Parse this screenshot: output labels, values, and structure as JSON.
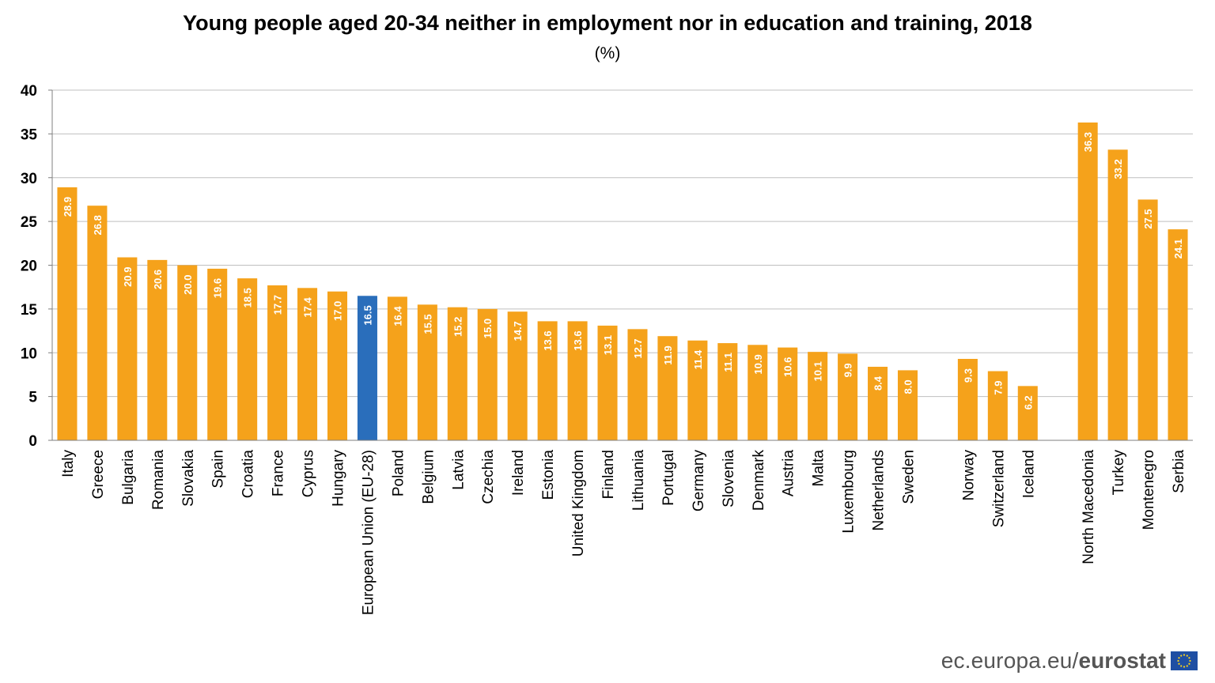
{
  "chart_data": {
    "type": "bar",
    "title": "Young people aged 20-34 neither in employment nor in education and training, 2018",
    "subtitle": "(%)",
    "ylim": [
      0,
      40
    ],
    "yticks": [
      0,
      5,
      10,
      15,
      20,
      25,
      30,
      35,
      40
    ],
    "grid": true,
    "groups": [
      {
        "categories": [
          "Italy",
          "Greece",
          "Bulgaria",
          "Romania",
          "Slovakia",
          "Spain",
          "Croatia",
          "France",
          "Cyprus",
          "Hungary",
          "European Union (EU-28)",
          "Poland",
          "Belgium",
          "Latvia",
          "Czechia",
          "Ireland",
          "Estonia",
          "United Kingdom",
          "Finland",
          "Lithuania",
          "Portugal",
          "Germany",
          "Slovenia",
          "Denmark",
          "Austria",
          "Malta",
          "Luxembourg",
          "Netherlands",
          "Sweden"
        ],
        "values": [
          28.9,
          26.8,
          20.9,
          20.6,
          20.0,
          19.6,
          18.5,
          17.7,
          17.4,
          17.0,
          16.5,
          16.4,
          15.5,
          15.2,
          15.0,
          14.7,
          13.6,
          13.6,
          13.1,
          12.7,
          11.9,
          11.4,
          11.1,
          10.9,
          10.6,
          10.1,
          9.9,
          8.4,
          8.0
        ],
        "labels": [
          "28.9",
          "26.8",
          "20.9",
          "20.6",
          "20.0",
          "19.6",
          "18.5",
          "17.7",
          "17.4",
          "17.0",
          "16.5",
          "16.4",
          "15.5",
          "15.2",
          "15.0",
          "14.7",
          "13.6",
          "13.6",
          "13.1",
          "12.7",
          "11.9",
          "11.4",
          "11.1",
          "10.9",
          "10.6",
          "10.1",
          "9.9",
          "8.4",
          "8.0"
        ]
      },
      {
        "categories": [
          "Norway",
          "Switzerland",
          "Iceland"
        ],
        "values": [
          9.3,
          7.9,
          6.2
        ],
        "labels": [
          "9.3",
          "7.9",
          "6.2"
        ]
      },
      {
        "categories": [
          "North Macedonia",
          "Turkey",
          "Montenegro",
          "Serbia"
        ],
        "values": [
          36.3,
          33.2,
          27.5,
          24.1
        ],
        "labels": [
          "36.3",
          "33.2",
          "27.5",
          "24.1"
        ]
      }
    ],
    "highlight": "European Union (EU-28)",
    "colors": {
      "bar": "#F5A21B",
      "highlight": "#2A6EBB",
      "grid": "#BFBFBF",
      "axis": "#7F7F7F"
    }
  },
  "footer": {
    "site": "ec.europa.eu/",
    "brand": "eurostat"
  }
}
